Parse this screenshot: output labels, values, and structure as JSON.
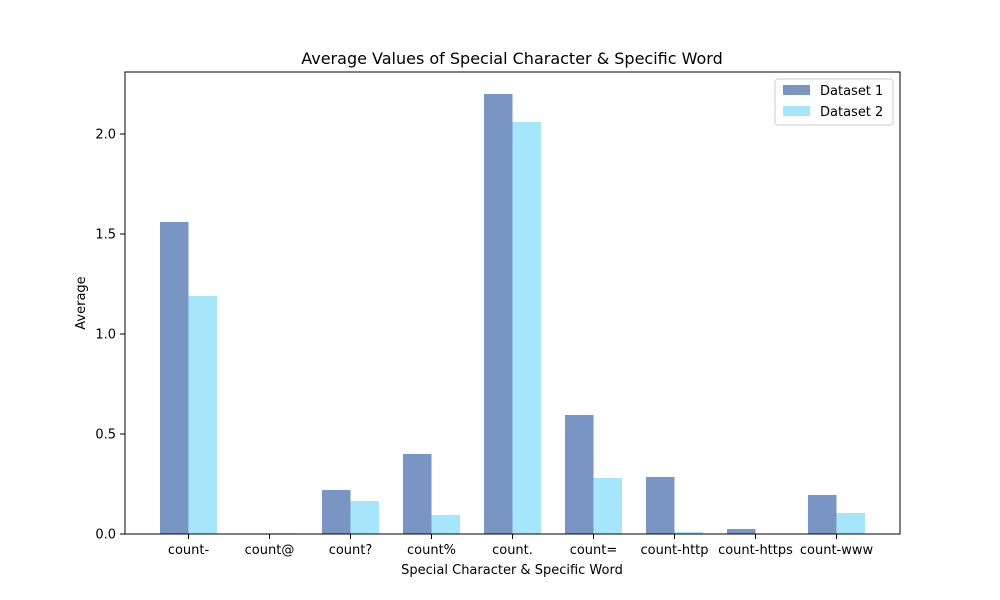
{
  "chart_data": {
    "type": "bar",
    "title": "Average Values of Special Character & Specific Word",
    "xlabel": "Special Character & Specific Word",
    "ylabel": "Average",
    "categories": [
      "count-",
      "count@",
      "count?",
      "count%",
      "count.",
      "count=",
      "count-http",
      "count-https",
      "count-www"
    ],
    "series": [
      {
        "name": "Dataset 1",
        "color": "#4c72b0",
        "values": [
          1.56,
          0.0,
          0.22,
          0.4,
          2.2,
          0.595,
          0.285,
          0.025,
          0.195
        ]
      },
      {
        "name": "Dataset 2",
        "color": "#87ddfa",
        "values": [
          1.19,
          0.004,
          0.165,
          0.095,
          2.06,
          0.28,
          0.01,
          0.0,
          0.105
        ]
      }
    ],
    "ylim": [
      0,
      2.31
    ],
    "yticks": [
      0.0,
      0.5,
      1.0,
      1.5,
      2.0
    ],
    "ytick_labels": [
      "0.0",
      "0.5",
      "1.0",
      "1.5",
      "2.0"
    ],
    "grid": false,
    "legend_position": "top-right",
    "bar_opacity": 0.75
  }
}
